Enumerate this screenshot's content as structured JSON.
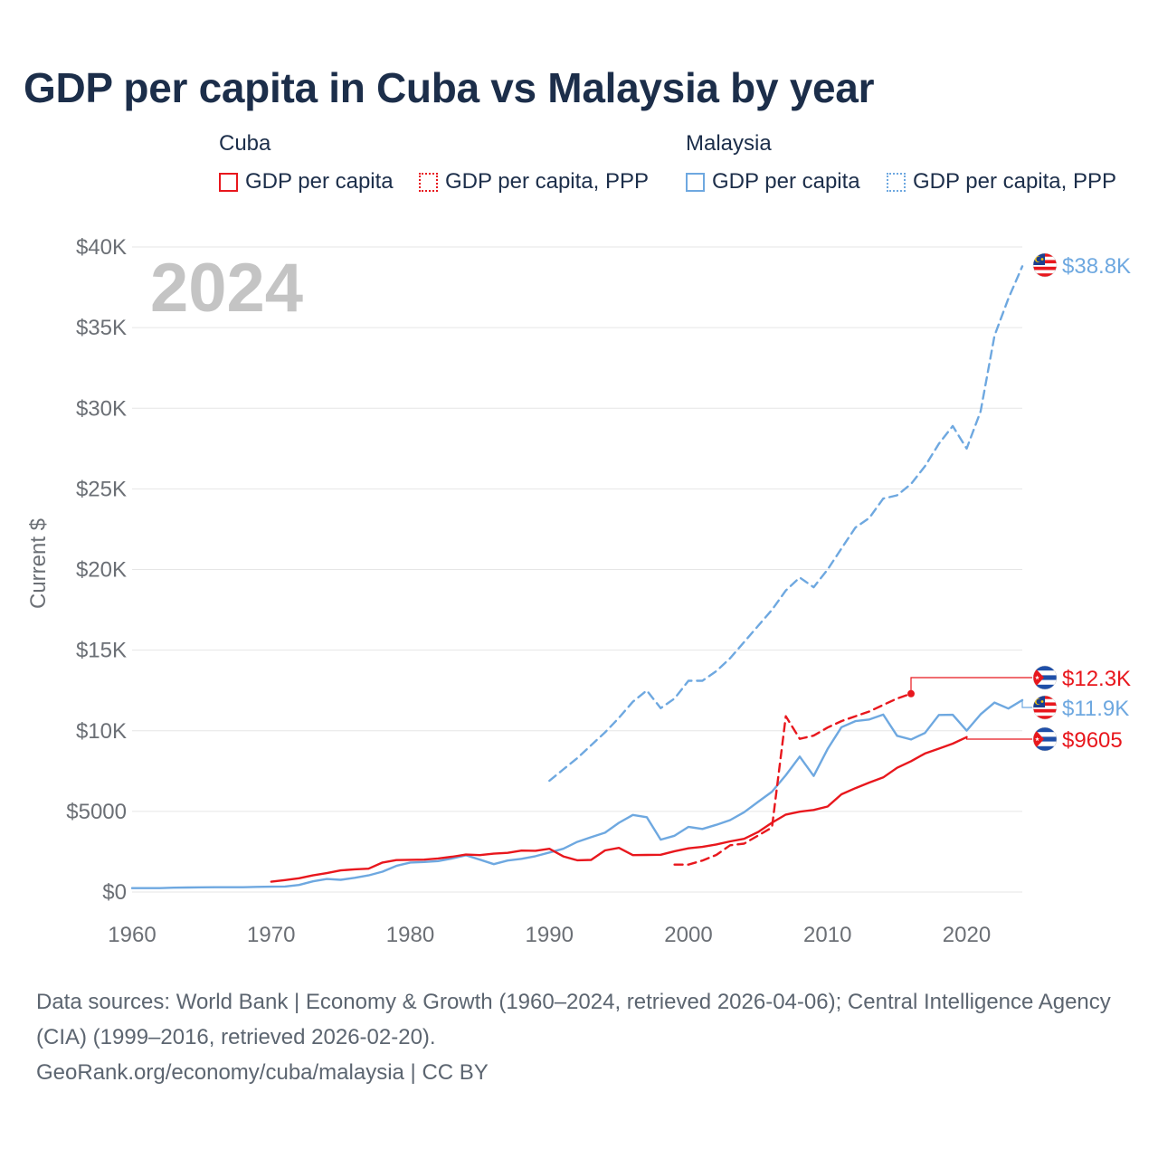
{
  "title": "GDP per capita in Cuba vs Malaysia by year",
  "legend": {
    "cuba": {
      "title": "Cuba",
      "gdp": "GDP per capita",
      "ppp": "GDP per capita, PPP"
    },
    "malaysia": {
      "title": "Malaysia",
      "gdp": "GDP per capita",
      "ppp": "GDP per capita, PPP"
    }
  },
  "year_watermark": "2024",
  "colors": {
    "cuba": "#e8171d",
    "malaysia": "#6ea8e0",
    "title": "#1c2e4a",
    "axis_text": "#6b6f75",
    "grid": "#e6e6e6"
  },
  "chart_data": {
    "type": "line",
    "xlabel": "",
    "ylabel": "Current $",
    "xlim": [
      1960,
      2024
    ],
    "ylim": [
      0,
      40000
    ],
    "x_ticks": [
      1960,
      1970,
      1980,
      1990,
      2000,
      2010,
      2020
    ],
    "x_tick_labels": [
      "1960",
      "1970",
      "1980",
      "1990",
      "2000",
      "2010",
      "2020"
    ],
    "y_ticks": [
      0,
      5000,
      10000,
      15000,
      20000,
      25000,
      30000,
      35000,
      40000
    ],
    "y_tick_labels": [
      "$0",
      "$5000",
      "$10K",
      "$15K",
      "$20K",
      "$25K",
      "$30K",
      "$35K",
      "$40K"
    ],
    "grid": true,
    "series": [
      {
        "name": "Malaysia GDP per capita, PPP",
        "country": "malaysia",
        "style": "dashed",
        "x": [
          1990,
          1991,
          1992,
          1993,
          1994,
          1995,
          1996,
          1997,
          1998,
          1999,
          2000,
          2001,
          2002,
          2003,
          2004,
          2005,
          2006,
          2007,
          2008,
          2009,
          2010,
          2011,
          2012,
          2013,
          2014,
          2015,
          2016,
          2017,
          2018,
          2019,
          2020,
          2021,
          2022,
          2023,
          2024
        ],
        "values": [
          6900,
          7600,
          8300,
          9100,
          9900,
          10800,
          11800,
          12500,
          11400,
          12000,
          13100,
          13100,
          13700,
          14500,
          15500,
          16500,
          17500,
          18700,
          19500,
          18900,
          20000,
          21300,
          22600,
          23200,
          24400,
          24600,
          25300,
          26400,
          27800,
          28900,
          27500,
          29800,
          34500,
          36800,
          38800
        ]
      },
      {
        "name": "Malaysia GDP per capita",
        "country": "malaysia",
        "style": "solid",
        "x": [
          1960,
          1961,
          1962,
          1963,
          1964,
          1965,
          1966,
          1967,
          1968,
          1969,
          1970,
          1971,
          1972,
          1973,
          1974,
          1975,
          1976,
          1977,
          1978,
          1979,
          1980,
          1981,
          1982,
          1983,
          1984,
          1985,
          1986,
          1987,
          1988,
          1989,
          1990,
          1991,
          1992,
          1993,
          1994,
          1995,
          1996,
          1997,
          1998,
          1999,
          2000,
          2001,
          2002,
          2003,
          2004,
          2005,
          2006,
          2007,
          2008,
          2009,
          2010,
          2011,
          2012,
          2013,
          2014,
          2015,
          2016,
          2017,
          2018,
          2019,
          2020,
          2021,
          2022,
          2023,
          2024
        ],
        "values": [
          240,
          240,
          240,
          270,
          280,
          290,
          300,
          300,
          300,
          320,
          330,
          340,
          440,
          660,
          810,
          760,
          880,
          1030,
          1260,
          1620,
          1830,
          1860,
          1920,
          2080,
          2280,
          2010,
          1730,
          1950,
          2060,
          2220,
          2450,
          2680,
          3110,
          3400,
          3680,
          4290,
          4780,
          4640,
          3250,
          3490,
          4040,
          3910,
          4170,
          4460,
          4950,
          5590,
          6220,
          7240,
          8400,
          7200,
          8870,
          10220,
          10600,
          10700,
          11000,
          9690,
          9460,
          9860,
          10980,
          10990,
          10010,
          11020,
          11750,
          11380,
          11900
        ]
      },
      {
        "name": "Cuba GDP per capita, PPP",
        "country": "cuba",
        "style": "dashed",
        "x": [
          1999,
          2000,
          2001,
          2002,
          2003,
          2004,
          2005,
          2006,
          2007,
          2008,
          2009,
          2010,
          2011,
          2012,
          2013,
          2014,
          2015,
          2016
        ],
        "values": [
          1700,
          1700,
          1950,
          2300,
          2900,
          3000,
          3500,
          4000,
          10900,
          9500,
          9700,
          10200,
          10600,
          10900,
          11200,
          11600,
          12000,
          12300
        ]
      },
      {
        "name": "Cuba GDP per capita",
        "country": "cuba",
        "style": "solid",
        "x": [
          1970,
          1971,
          1972,
          1973,
          1974,
          1975,
          1976,
          1977,
          1978,
          1979,
          1980,
          1981,
          1982,
          1983,
          1984,
          1985,
          1986,
          1987,
          1988,
          1989,
          1990,
          1991,
          1992,
          1993,
          1994,
          1995,
          1996,
          1997,
          1998,
          1999,
          2000,
          2001,
          2002,
          2003,
          2004,
          2005,
          2006,
          2007,
          2008,
          2009,
          2010,
          2011,
          2012,
          2013,
          2014,
          2015,
          2016,
          2017,
          2018,
          2019,
          2020
        ],
        "values": [
          640,
          740,
          850,
          1030,
          1170,
          1340,
          1410,
          1450,
          1830,
          1980,
          2000,
          2010,
          2080,
          2190,
          2320,
          2290,
          2380,
          2430,
          2570,
          2560,
          2680,
          2210,
          1970,
          1990,
          2580,
          2740,
          2290,
          2300,
          2310,
          2530,
          2710,
          2800,
          2950,
          3140,
          3300,
          3720,
          4300,
          4800,
          4980,
          5090,
          5300,
          6060,
          6440,
          6790,
          7110,
          7700,
          8110,
          8590,
          8890,
          9200,
          9605
        ]
      }
    ],
    "end_labels": [
      {
        "country": "malaysia",
        "text": "$38.8K",
        "series": "Malaysia GDP per capita, PPP"
      },
      {
        "country": "cuba",
        "text": "$12.3K",
        "series": "Cuba GDP per capita, PPP"
      },
      {
        "country": "malaysia",
        "text": "$11.9K",
        "series": "Malaysia GDP per capita"
      },
      {
        "country": "cuba",
        "text": "$9605",
        "series": "Cuba GDP per capita"
      }
    ]
  },
  "footer": {
    "sources": "Data sources: World Bank | Economy & Growth (1960–2024, retrieved 2026-04-06); Central Intelligence Agency (CIA) (1999–2016, retrieved 2026-02-20).",
    "credit": "GeoRank.org/economy/cuba/malaysia | CC BY"
  }
}
